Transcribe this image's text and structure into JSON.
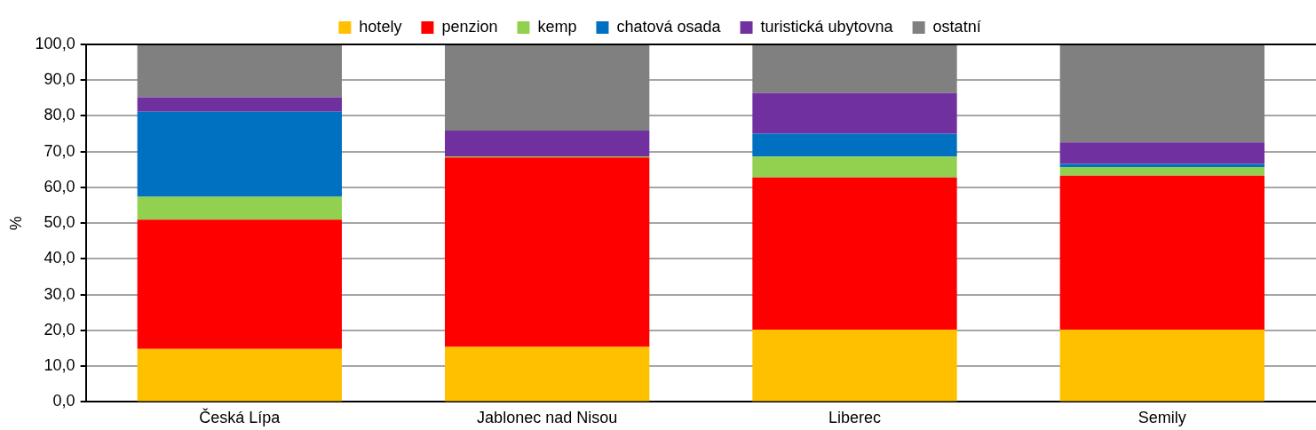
{
  "chart_data": {
    "type": "bar",
    "stacked": true,
    "ylabel": "%",
    "categories": [
      "Česká Lípa",
      "Jablonec nad Nisou",
      "Liberec",
      "Semily"
    ],
    "series": [
      {
        "name": "hotely",
        "color": "#ffc000",
        "values": [
          14.8,
          15.4,
          20.2,
          20.2
        ]
      },
      {
        "name": "penzion",
        "color": "#ff0000",
        "values": [
          36.2,
          53.0,
          42.6,
          43.1
        ]
      },
      {
        "name": "kemp",
        "color": "#92d050",
        "values": [
          6.4,
          0.3,
          5.8,
          2.4
        ]
      },
      {
        "name": "chatová osada",
        "color": "#0070c0",
        "values": [
          23.8,
          0,
          6.4,
          0.9
        ]
      },
      {
        "name": "turistická ubytovna",
        "color": "#7030a0",
        "values": [
          4.0,
          7.2,
          11.4,
          6.0
        ]
      },
      {
        "name": "ostatní",
        "color": "#808080",
        "values": [
          14.8,
          24.1,
          13.6,
          27.4
        ]
      }
    ],
    "ylim": [
      0,
      100
    ],
    "yticks": [
      {
        "value": 0,
        "label": "0,0"
      },
      {
        "value": 10,
        "label": "10,0"
      },
      {
        "value": 20,
        "label": "20,0"
      },
      {
        "value": 30,
        "label": "30,0"
      },
      {
        "value": 40,
        "label": "40,0"
      },
      {
        "value": 50,
        "label": "50,0"
      },
      {
        "value": 60,
        "label": "60,0"
      },
      {
        "value": 70,
        "label": "70,0"
      },
      {
        "value": 80,
        "label": "80,0"
      },
      {
        "value": 90,
        "label": "90,0"
      },
      {
        "value": 100,
        "label": "100,0"
      }
    ],
    "grid": "y",
    "legend": "top"
  }
}
